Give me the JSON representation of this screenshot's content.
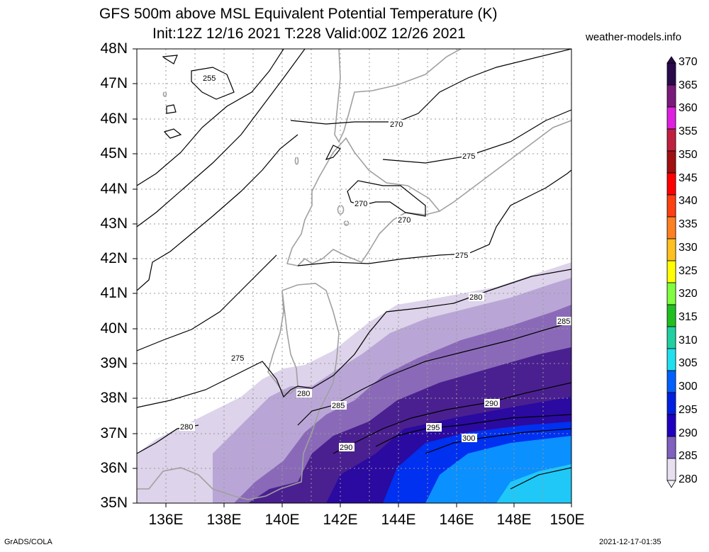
{
  "header": {
    "title_line1": "GFS 500m above MSL Equivalent Potential Temperature (K)",
    "title_line2": "Init:12Z 12/16 2021 T:228 Valid:00Z 12/26 2021",
    "site": "weather-models.info"
  },
  "footer": {
    "left": "GrADS/COLA",
    "right": "2021-12-17-01:35"
  },
  "map": {
    "lat_labels": [
      "48N",
      "47N",
      "46N",
      "45N",
      "44N",
      "43N",
      "42N",
      "41N",
      "40N",
      "39N",
      "38N",
      "37N",
      "36N",
      "35N"
    ],
    "lon_labels": [
      "136E",
      "138E",
      "140E",
      "142E",
      "144E",
      "146E",
      "148E",
      "150E"
    ],
    "contour_labels": [
      "255",
      "270",
      "270",
      "270",
      "275",
      "275",
      "275",
      "280",
      "280",
      "280",
      "285",
      "285",
      "290",
      "290",
      "295",
      "300"
    ]
  },
  "colorbar": {
    "labels": [
      "370",
      "365",
      "360",
      "355",
      "350",
      "345",
      "340",
      "335",
      "330",
      "325",
      "320",
      "315",
      "310",
      "305",
      "300",
      "295",
      "290",
      "285",
      "280"
    ],
    "colors": [
      "#2a0a4a",
      "#7a1a7a",
      "#e020e0",
      "#c02040",
      "#a01010",
      "#ff0000",
      "#ff4010",
      "#ff8020",
      "#ffc020",
      "#ffff00",
      "#80ff40",
      "#20c020",
      "#20d0a0",
      "#20e0f0",
      "#0060ff",
      "#0020e0",
      "#2000c0",
      "#8060c0",
      "#e8e0f0"
    ]
  }
}
